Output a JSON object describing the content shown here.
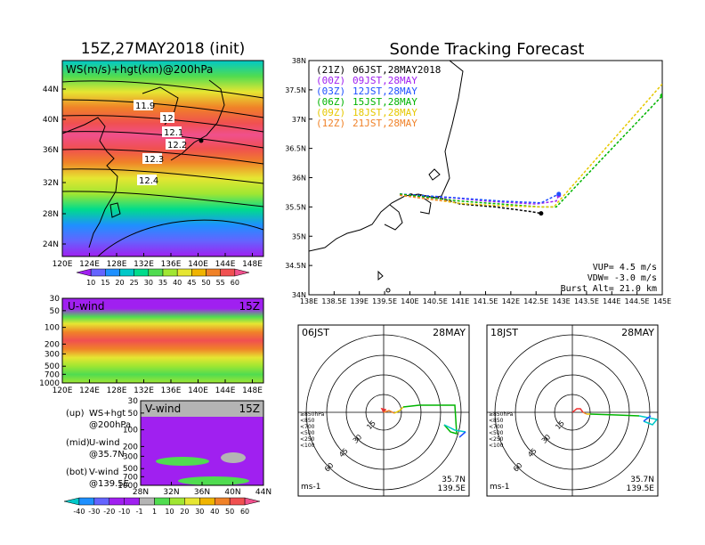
{
  "left_title": "15Z,27MAY2018 (init)",
  "right_title": "Sonde Tracking Forecast",
  "map_panel": {
    "label": "WS(m/s)+hgt(km)@200hPa",
    "contour_labels": [
      "11.9",
      "12",
      "12.1",
      "12.2",
      "12.3",
      "12.4"
    ],
    "lat_ticks": [
      "44N",
      "40N",
      "36N",
      "32N",
      "28N",
      "24N"
    ],
    "lon_ticks": [
      "120E",
      "124E",
      "128E",
      "132E",
      "136E",
      "140E",
      "144E",
      "148E"
    ],
    "colorbar_labels": [
      "10",
      "15",
      "20",
      "25",
      "30",
      "35",
      "40",
      "45",
      "50",
      "55",
      "60"
    ],
    "colorbar_colors": [
      "#a020f0",
      "#6464ff",
      "#1e90ff",
      "#00c8c8",
      "#00dc8c",
      "#50dc50",
      "#a0e632",
      "#e6e632",
      "#f0b400",
      "#f08228",
      "#f05050",
      "#f0508c"
    ]
  },
  "uwind_panel": {
    "label": "U-wind",
    "time": "15Z",
    "p_ticks": [
      "30",
      "50",
      "100",
      "200",
      "300",
      "500",
      "700",
      "1000"
    ],
    "lon_ticks": [
      "120E",
      "124E",
      "128E",
      "132E",
      "136E",
      "140E",
      "144E",
      "148E"
    ]
  },
  "vwind_panel": {
    "label": "V-wind",
    "time": "15Z",
    "p_ticks": [
      "30",
      "50",
      "100",
      "200",
      "300",
      "500",
      "700",
      "1000"
    ],
    "lat_ticks": [
      "28N",
      "32N",
      "36N",
      "40N",
      "44N"
    ]
  },
  "legend_notes": [
    {
      "a": "(up)",
      "b": "WS+hgt",
      "c": "@200hPa"
    },
    {
      "a": "(mid)",
      "b": "U-wind",
      "c": "@35.7N"
    },
    {
      "a": "(bot)",
      "b": "V-wind",
      "c": "@139.5E"
    }
  ],
  "bottom_colorbar_labels": [
    "-40",
    "-30",
    "-20",
    "-10",
    "-1",
    "1",
    "10",
    "20",
    "30",
    "40",
    "50",
    "60"
  ],
  "bottom_colorbar_colors": [
    "#00c8c8",
    "#1e90ff",
    "#6464ff",
    "#a020f0",
    "#a020f0",
    "#b4b4b4",
    "#50dc50",
    "#a0e632",
    "#e6e632",
    "#f0b400",
    "#f08228",
    "#f05050",
    "#f0508c"
  ],
  "track_panel": {
    "lat_ticks": [
      "38N",
      "37.5N",
      "37N",
      "36.5N",
      "36N",
      "35.5N",
      "35N",
      "34.5N",
      "34N"
    ],
    "lon_ticks": [
      "138E",
      "138.5E",
      "139E",
      "139.5E",
      "140E",
      "140.5E",
      "141E",
      "141.5E",
      "142E",
      "142.5E",
      "143E",
      "143.5E",
      "144E",
      "144.5E",
      "145E"
    ],
    "launches": [
      {
        "code": "(21Z)",
        "time": "06JST,28MAY2018",
        "color": "#000000"
      },
      {
        "code": "(00Z)",
        "time": "09JST,28MAY",
        "color": "#a020f0"
      },
      {
        "code": "(03Z)",
        "time": "12JST,28MAY",
        "color": "#1e50ff"
      },
      {
        "code": "(06Z)",
        "time": "15JST,28MAY",
        "color": "#00b400"
      },
      {
        "code": "(09Z)",
        "time": "18JST,28MAY",
        "color": "#e6c800"
      },
      {
        "code": "(12Z)",
        "time": "21JST,28MAY",
        "color": "#f08228"
      }
    ],
    "params": {
      "vup": "VUP=  4.5 m/s",
      "vdw": "VDW= -3.0 m/s",
      "burst": "Burst Alt= 21.0 km"
    }
  },
  "hodographs": [
    {
      "time": "06JST",
      "date": "28MAY",
      "speed_labels": [
        "15",
        "30",
        "45",
        "60"
      ],
      "levels": [
        "≥850hPa",
        "<850",
        "<700",
        "<500",
        "<250",
        "<100"
      ],
      "unit": "ms-1",
      "lat": "35.7N",
      "lon": "139.5E"
    },
    {
      "time": "18JST",
      "date": "28MAY",
      "speed_labels": [
        "15",
        "30",
        "45",
        "60"
      ],
      "levels": [
        "≥850hPa",
        "<850",
        "<700",
        "<500",
        "<250",
        "<100"
      ],
      "unit": "ms-1",
      "lat": "35.7N",
      "lon": "139.5E"
    }
  ],
  "hodo_level_colors": [
    "#f03232",
    "#f08228",
    "#e6c800",
    "#00b400",
    "#00c8c8",
    "#1e50ff"
  ],
  "chart_data": {
    "type": "line",
    "title": "Sonde Tracking Forecast",
    "x_range": [
      138,
      145
    ],
    "y_range": [
      34,
      38
    ],
    "series": [
      {
        "name": "(21Z) 06JST,28MAY2018",
        "color": "#000000",
        "points": [
          [
            140.0,
            35.72
          ],
          [
            140.6,
            35.65
          ],
          [
            141.0,
            35.55
          ],
          [
            141.7,
            35.5
          ],
          [
            142.4,
            35.42
          ],
          [
            142.6,
            35.39
          ]
        ]
      },
      {
        "name": "(00Z) 09JST,28MAY",
        "color": "#a020f0",
        "points": [
          [
            139.8,
            35.72
          ],
          [
            140.5,
            35.65
          ],
          [
            140.8,
            35.66
          ],
          [
            141.5,
            35.6
          ],
          [
            142.5,
            35.55
          ],
          [
            142.9,
            35.6
          ],
          [
            142.95,
            35.7
          ]
        ]
      },
      {
        "name": "(03Z) 12JST,28MAY",
        "color": "#1e50ff",
        "points": [
          [
            139.8,
            35.72
          ],
          [
            140.5,
            35.68
          ],
          [
            141.0,
            35.65
          ],
          [
            141.8,
            35.6
          ],
          [
            142.6,
            35.57
          ],
          [
            142.95,
            35.72
          ]
        ]
      },
      {
        "name": "(06Z) 15JST,28MAY",
        "color": "#00b400",
        "points": [
          [
            139.8,
            35.72
          ],
          [
            140.5,
            35.65
          ],
          [
            141.0,
            35.6
          ],
          [
            141.8,
            35.55
          ],
          [
            142.6,
            35.5
          ],
          [
            142.9,
            35.5
          ],
          [
            145.0,
            37.4
          ]
        ]
      },
      {
        "name": "(09Z) 18JST,28MAY",
        "color": "#e6c800",
        "points": [
          [
            139.8,
            35.7
          ],
          [
            140.5,
            35.62
          ],
          [
            141.0,
            35.56
          ],
          [
            141.8,
            35.52
          ],
          [
            142.6,
            35.5
          ],
          [
            142.85,
            35.5
          ],
          [
            145.0,
            37.6
          ]
        ]
      },
      {
        "name": "(12Z) 21JST,28MAY",
        "color": "#f08228",
        "points": [
          [
            139.8,
            35.7
          ],
          [
            140.5,
            35.62
          ],
          [
            140.8,
            35.6
          ]
        ]
      }
    ]
  }
}
